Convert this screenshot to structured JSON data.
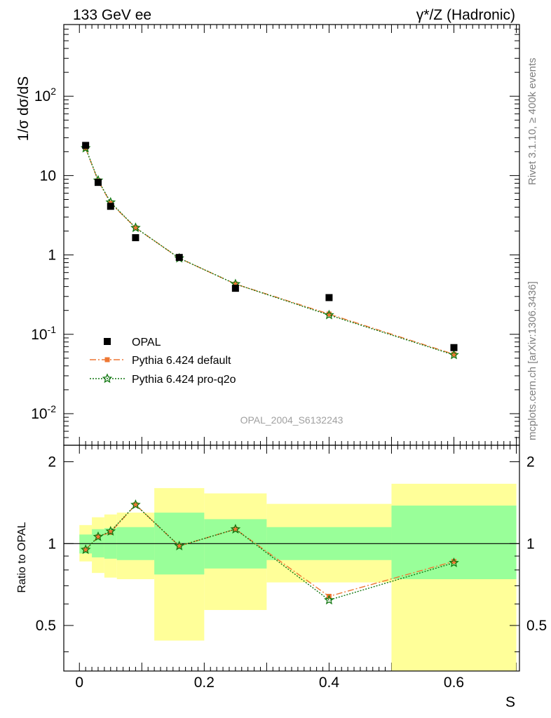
{
  "title_left": "133 GeV ee",
  "title_right": "γ*/Z (Hadronic)",
  "side_text_top": "Rivet 3.1.10, ≥ 400k events",
  "side_text_bottom": "mcplots.cern.ch [arXiv:1306.3436]",
  "analysis_label": "OPAL_2004_S6132243",
  "colors": {
    "data": "#000000",
    "default": "#ee7733",
    "proq2o": "#117711",
    "band_inner": "#99ff99",
    "band_outer": "#ffff99"
  },
  "chart_data": [
    {
      "type": "scatter",
      "scale": "log",
      "ylabel": "1/σ dσ/dS",
      "ylim": [
        0.004,
        800
      ],
      "xlim": [
        -0.025,
        0.705
      ],
      "yticks": [
        {
          "value": 0.01,
          "base": "10",
          "exp": "-2"
        },
        {
          "value": 0.1,
          "base": "10",
          "exp": "-1"
        },
        {
          "value": 1,
          "base": "1",
          "exp": ""
        },
        {
          "value": 10,
          "base": "10",
          "exp": ""
        },
        {
          "value": 100,
          "base": "10",
          "exp": "2"
        }
      ],
      "legend": {
        "position": "bottom-left",
        "entries": [
          "OPAL",
          "Pythia 6.424 default",
          "Pythia 6.424 pro-q2o"
        ]
      },
      "series": [
        {
          "name": "OPAL",
          "style": "square",
          "x": [
            0.01,
            0.03,
            0.05,
            0.09,
            0.16,
            0.25,
            0.4,
            0.6
          ],
          "y": [
            24.0,
            8.2,
            4.1,
            1.65,
            0.93,
            0.38,
            0.29,
            0.068
          ]
        },
        {
          "name": "Pythia 6.424 default",
          "style": "dashdot-square",
          "x": [
            0.01,
            0.03,
            0.05,
            0.09,
            0.16,
            0.25,
            0.4,
            0.6
          ],
          "y": [
            22.0,
            8.6,
            4.5,
            2.2,
            0.91,
            0.43,
            0.18,
            0.056
          ]
        },
        {
          "name": "Pythia 6.424 pro-q2o",
          "style": "dotted-star",
          "x": [
            0.01,
            0.03,
            0.05,
            0.09,
            0.16,
            0.25,
            0.4,
            0.6
          ],
          "y": [
            22.2,
            8.7,
            4.6,
            2.2,
            0.91,
            0.43,
            0.175,
            0.055
          ]
        }
      ]
    },
    {
      "type": "line",
      "scale": "log",
      "ylabel": "Ratio to OPAL",
      "xlabel": "S",
      "ylim": [
        0.34,
        2.3
      ],
      "xlim": [
        -0.025,
        0.705
      ],
      "yticks": [
        {
          "value": 0.5,
          "label": "0.5"
        },
        {
          "value": 1,
          "label": "1"
        },
        {
          "value": 2,
          "label": "2"
        }
      ],
      "xticks": [
        {
          "value": 0,
          "label": "0"
        },
        {
          "value": 0.2,
          "label": "0.2"
        },
        {
          "value": 0.4,
          "label": "0.4"
        },
        {
          "value": 0.6,
          "label": "0.6"
        }
      ],
      "bands": [
        {
          "x0": 0.0,
          "x1": 0.02,
          "outer": [
            0.86,
            1.17
          ],
          "inner": [
            0.92,
            1.08
          ]
        },
        {
          "x0": 0.02,
          "x1": 0.04,
          "outer": [
            0.78,
            1.25
          ],
          "inner": [
            0.89,
            1.13
          ]
        },
        {
          "x0": 0.04,
          "x1": 0.06,
          "outer": [
            0.75,
            1.28
          ],
          "inner": [
            0.88,
            1.14
          ]
        },
        {
          "x0": 0.06,
          "x1": 0.12,
          "outer": [
            0.74,
            1.3
          ],
          "inner": [
            0.87,
            1.15
          ]
        },
        {
          "x0": 0.12,
          "x1": 0.2,
          "outer": [
            0.44,
            1.6
          ],
          "inner": [
            0.77,
            1.3
          ]
        },
        {
          "x0": 0.2,
          "x1": 0.3,
          "outer": [
            0.57,
            1.53
          ],
          "inner": [
            0.81,
            1.23
          ]
        },
        {
          "x0": 0.3,
          "x1": 0.5,
          "outer": [
            0.72,
            1.4
          ],
          "inner": [
            0.87,
            1.15
          ]
        },
        {
          "x0": 0.5,
          "x1": 0.7,
          "outer": [
            0.34,
            1.66
          ],
          "inner": [
            0.74,
            1.38
          ]
        }
      ],
      "series": [
        {
          "name": "Pythia 6.424 default",
          "style": "dashdot-square",
          "x": [
            0.01,
            0.03,
            0.05,
            0.09,
            0.16,
            0.25,
            0.4,
            0.6
          ],
          "y": [
            0.95,
            1.06,
            1.1,
            1.39,
            0.98,
            1.13,
            0.64,
            0.86
          ]
        },
        {
          "name": "Pythia 6.424 pro-q2o",
          "style": "dotted-star",
          "x": [
            0.01,
            0.03,
            0.05,
            0.09,
            0.16,
            0.25,
            0.4,
            0.6
          ],
          "y": [
            0.95,
            1.06,
            1.11,
            1.39,
            0.98,
            1.13,
            0.62,
            0.85
          ]
        }
      ]
    }
  ]
}
